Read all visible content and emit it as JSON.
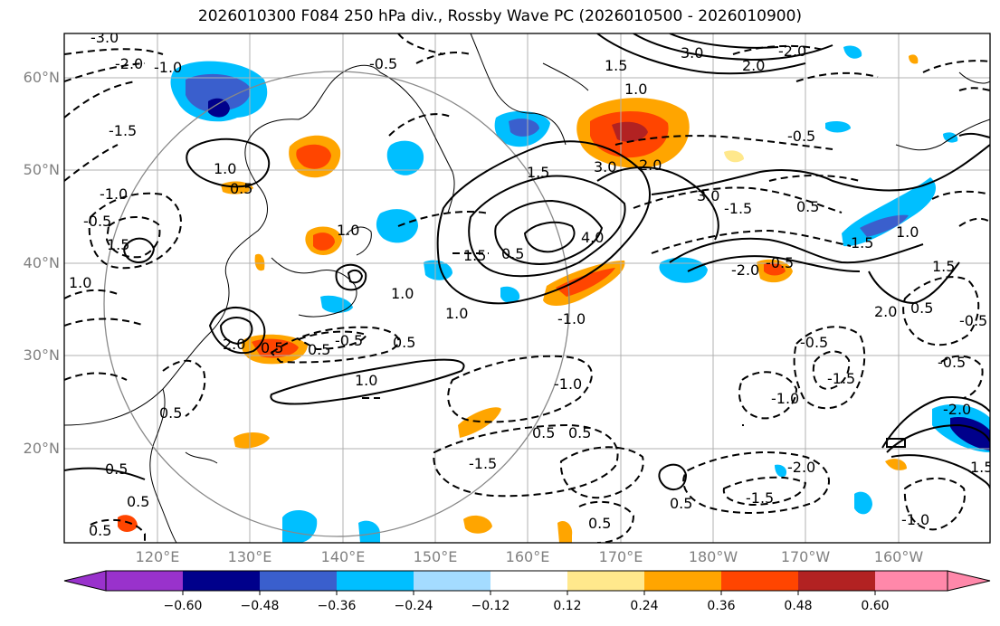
{
  "title": "2026010300 F084 250 hPa div., Rossby Wave PC (2026010500 - 2026010900)",
  "lat_labels": [
    "60°N",
    "50°N",
    "40°N",
    "30°N",
    "20°N"
  ],
  "lon_labels": [
    "120°E",
    "130°E",
    "140°E",
    "150°E",
    "160°E",
    "170°E",
    "180°W",
    "170°W",
    "160°W"
  ],
  "colorbar": {
    "tick_labels": [
      "−0.60",
      "−0.48",
      "−0.36",
      "−0.24",
      "−0.12",
      "0.12",
      "0.24",
      "0.36",
      "0.48",
      "0.60"
    ],
    "colors": [
      "#9932cc",
      "#00008b",
      "#3a5fcd",
      "#00bfff",
      "#a4dcff",
      "#ffffff",
      "#ffe88c",
      "#ffa500",
      "#ff4500",
      "#b22222",
      "#ff88aa"
    ]
  },
  "contour_labels": [
    "-3.0",
    "-2.0",
    "-1.5",
    "-1.0",
    "-0.5",
    "1.0",
    "0.5",
    "1.5",
    "2.0",
    "3.0",
    "4.0"
  ]
}
